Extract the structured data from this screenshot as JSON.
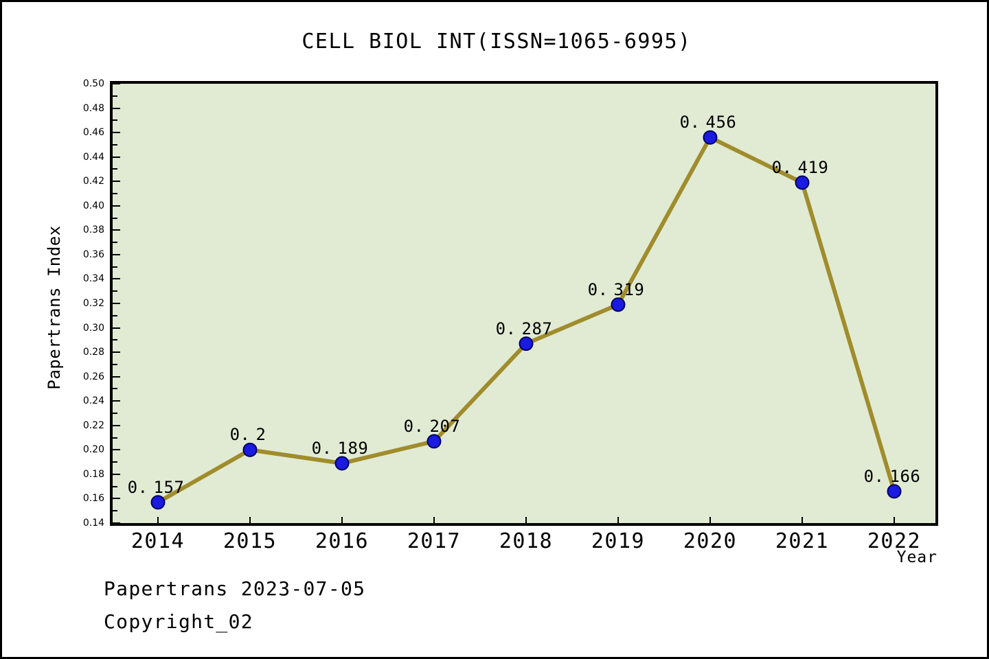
{
  "title": "CELL BIOL INT(ISSN=1065-6995)",
  "footer": {
    "line1": "Papertrans 2023-07-05",
    "line2": "Copyright_02"
  },
  "chart_data": {
    "type": "line",
    "title": "CELL BIOL INT(ISSN=1065-6995)",
    "x": [
      2014,
      2015,
      2016,
      2017,
      2018,
      2019,
      2020,
      2021,
      2022
    ],
    "xticks": [
      "2014",
      "2015",
      "2016",
      "2017",
      "2018",
      "2019",
      "2020",
      "2021",
      "2022"
    ],
    "series": [
      {
        "name": "Papertrans Index",
        "values": [
          0.157,
          0.2,
          0.189,
          0.207,
          0.287,
          0.319,
          0.456,
          0.419,
          0.166
        ]
      }
    ],
    "point_labels": [
      "0.157",
      "0.2",
      "0.189",
      "0.207",
      "0.287",
      "0.319",
      "0.456",
      "0.419",
      "0.166"
    ],
    "xlabel": "Year",
    "ylabel": "Papertrans Index",
    "ylim": [
      0.14,
      0.5
    ],
    "ytick_step": 0.02,
    "yminor_step": 0.01,
    "grid": false,
    "legend": "none",
    "colors": {
      "line": "#a08c2c",
      "marker_fill": "#1a1ae0",
      "marker_edge": "#000060",
      "plot_bg": "#e1ebd3",
      "frame": "#000000",
      "text": "#000000",
      "page_bg": "#ffffff"
    }
  }
}
